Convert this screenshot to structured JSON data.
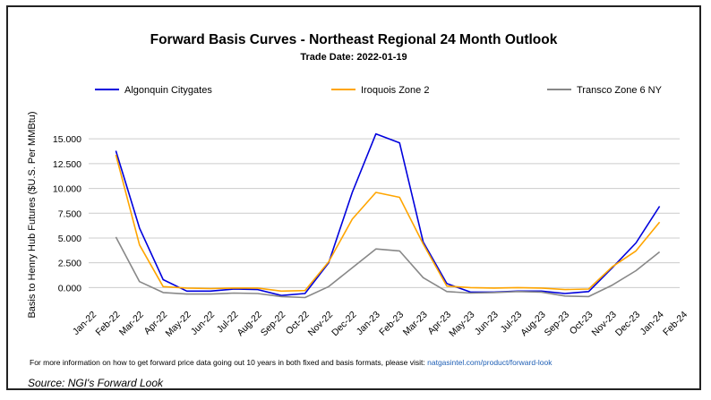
{
  "chart_data": {
    "type": "line",
    "title": "Forward Basis Curves - Northeast Regional 24 Month Outlook",
    "subtitle": "Trade Date: 2022-01-19",
    "ylabel": "Basis to Henry Hub Futures ($U.S. Per MMBtu)",
    "xlabel": "",
    "ylim": [
      -1.5,
      17.0
    ],
    "yticks": [
      0.0,
      2.5,
      5.0,
      7.5,
      10.0,
      12.5,
      15.0
    ],
    "ytick_labels": [
      "0.000",
      "2.500",
      "5.000",
      "7.500",
      "10.000",
      "12.500",
      "15.000"
    ],
    "grid": "horizontal",
    "legend_position": "top",
    "categories": [
      "Jan-22",
      "Feb-22",
      "Mar-22",
      "Apr-22",
      "May-22",
      "Jun-22",
      "Jul-22",
      "Aug-22",
      "Sep-22",
      "Oct-22",
      "Nov-22",
      "Dec-22",
      "Jan-23",
      "Feb-23",
      "Mar-23",
      "Apr-23",
      "May-23",
      "Jun-23",
      "Jul-23",
      "Aug-23",
      "Sep-23",
      "Oct-23",
      "Nov-23",
      "Dec-23",
      "Jan-24",
      "Feb-24"
    ],
    "series": [
      {
        "name": "Algonquin Citygates",
        "color": "#0000dd",
        "values": [
          null,
          13.8,
          6.0,
          0.8,
          -0.35,
          -0.35,
          -0.15,
          -0.2,
          -0.8,
          -0.6,
          2.5,
          9.6,
          15.5,
          14.6,
          4.6,
          0.4,
          -0.45,
          -0.45,
          -0.35,
          -0.35,
          -0.6,
          -0.4,
          2.0,
          4.5,
          8.2,
          null
        ]
      },
      {
        "name": "Iroquois Zone 2",
        "color": "#ffa500",
        "values": [
          null,
          13.4,
          4.3,
          0.1,
          -0.05,
          -0.1,
          -0.05,
          -0.05,
          -0.35,
          -0.3,
          2.6,
          6.9,
          9.6,
          9.1,
          4.4,
          0.15,
          0.0,
          -0.05,
          0.0,
          -0.05,
          -0.2,
          -0.15,
          2.1,
          3.7,
          6.6,
          null
        ]
      },
      {
        "name": "Transco Zone 6 NY",
        "color": "#888888",
        "values": [
          null,
          5.1,
          0.6,
          -0.5,
          -0.65,
          -0.65,
          -0.55,
          -0.6,
          -0.9,
          -1.0,
          0.1,
          2.0,
          3.9,
          3.7,
          1.0,
          -0.4,
          -0.55,
          -0.5,
          -0.4,
          -0.45,
          -0.85,
          -0.9,
          0.25,
          1.7,
          3.6,
          null
        ]
      }
    ]
  },
  "footnote": {
    "text": "For more information on how to get forward price data going out 10 years in both fixed and basis formats, please visit:",
    "link": "natgasintel.com/product/forward-look"
  },
  "source": "Source: NGI's Forward Look"
}
